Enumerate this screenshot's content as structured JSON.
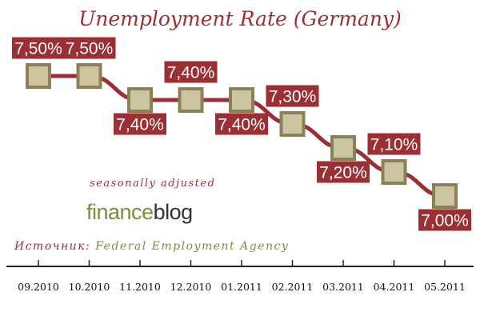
{
  "colors": {
    "line": "#9b2f33",
    "label_bg": "#9b2f33",
    "marker_fill": "#cdc4a1",
    "marker_stroke": "#8a8256",
    "axis": "#222222",
    "brand_green": "#7f8c3c"
  },
  "note": "seasonally adjusted",
  "brand": {
    "part1": "finance",
    "part2": "blog"
  },
  "source": {
    "prefix": "Источник:",
    "name": "Federal Employment Agency"
  },
  "chart_data": {
    "type": "line",
    "title": "Unemployment Rate (Germany)",
    "xlabel": "",
    "ylabel": "",
    "categories": [
      "09.2010",
      "10.2010",
      "11.2010",
      "12.2010",
      "01.2011",
      "02.2011",
      "03.2011",
      "04.2011",
      "05.2011"
    ],
    "values": [
      7.5,
      7.5,
      7.4,
      7.4,
      7.4,
      7.3,
      7.2,
      7.1,
      7.0
    ],
    "data_labels": [
      "7,50%",
      "7,50%",
      "7,40%",
      "7,40%",
      "7,40%",
      "7,30%",
      "7,20%",
      "7,10%",
      "7,00%"
    ],
    "label_position": [
      "above",
      "above",
      "below",
      "above",
      "below",
      "above",
      "below",
      "above",
      "below"
    ],
    "grid": false,
    "legend": "none"
  }
}
